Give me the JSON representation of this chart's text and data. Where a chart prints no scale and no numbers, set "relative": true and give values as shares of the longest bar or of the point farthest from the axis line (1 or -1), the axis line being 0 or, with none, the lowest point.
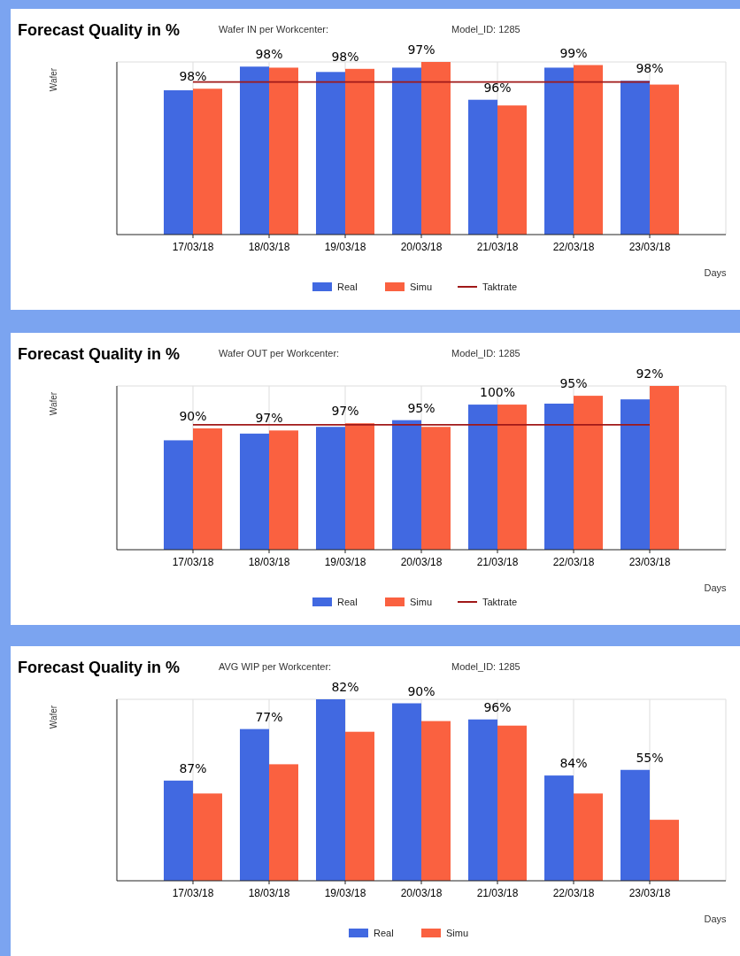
{
  "chart_data": [
    {
      "type": "bar",
      "title": "Forecast Quality in %",
      "subtitle": "Wafer IN per Workcenter:",
      "xlabel": "Days",
      "ylabel": "Wafer",
      "relative": true,
      "grid": true,
      "legend": "bottom",
      "categories": [
        "17/03/18",
        "18/03/18",
        "19/03/18",
        "20/03/18",
        "21/03/18",
        "22/03/18",
        "23/03/18"
      ],
      "series": [
        {
          "name": "Real",
          "color": "#4169e1",
          "values": [
            0.836,
            0.973,
            0.942,
            0.967,
            0.781,
            0.967,
            0.891
          ]
        },
        {
          "name": "Simu",
          "color": "#fa6140",
          "values": [
            0.845,
            0.967,
            0.96,
            1,
            0.748,
            0.982,
            0.869
          ]
        },
        {
          "name": "Taktrate",
          "type": "line",
          "color": "#a01818",
          "values": [
            0.884,
            0.884,
            0.884,
            0.884,
            0.884,
            0.884,
            0.884
          ]
        }
      ],
      "annotations": [
        "Model_ID: 1285",
        "98%",
        "98%",
        "98%",
        "97%",
        "96%",
        "99%",
        "98%"
      ]
    },
    {
      "type": "bar",
      "title": "Forecast Quality in %",
      "subtitle": "Wafer OUT per Workcenter:",
      "xlabel": "Days",
      "ylabel": "Wafer",
      "relative": true,
      "grid": true,
      "legend": "bottom",
      "categories": [
        "17/03/18",
        "18/03/18",
        "19/03/18",
        "20/03/18",
        "21/03/18",
        "22/03/18",
        "23/03/18"
      ],
      "series": [
        {
          "name": "Real",
          "color": "#4169e1",
          "values": [
            0.668,
            0.709,
            0.75,
            0.791,
            0.886,
            0.892,
            0.918
          ]
        },
        {
          "name": "Simu",
          "color": "#fa6140",
          "values": [
            0.741,
            0.728,
            0.772,
            0.75,
            0.886,
            0.94,
            1
          ]
        },
        {
          "name": "Taktrate",
          "type": "line",
          "color": "#a01818",
          "values": [
            0.763,
            0.763,
            0.763,
            0.763,
            0.763,
            0.763,
            0.763
          ]
        }
      ],
      "annotations": [
        "Model_ID: 1285",
        "90%",
        "97%",
        "97%",
        "95%",
        "100%",
        "95%",
        "92%"
      ]
    },
    {
      "type": "bar",
      "title": "Forecast Quality in %",
      "subtitle": "AVG WIP per Workcenter:",
      "xlabel": "Days",
      "ylabel": "Wafer",
      "relative": true,
      "grid": true,
      "legend": "bottom",
      "categories": [
        "17/03/18",
        "18/03/18",
        "19/03/18",
        "20/03/18",
        "21/03/18",
        "22/03/18",
        "23/03/18"
      ],
      "series": [
        {
          "name": "Real",
          "color": "#4169e1",
          "values": [
            0.552,
            0.836,
            1,
            0.978,
            0.889,
            0.58,
            0.611
          ]
        },
        {
          "name": "Simu",
          "color": "#fa6140",
          "values": [
            0.481,
            0.642,
            0.821,
            0.88,
            0.855,
            0.481,
            0.336
          ]
        }
      ],
      "annotations": [
        "Model_ID: 1285",
        "87%",
        "77%",
        "82%",
        "90%",
        "96%",
        "84%",
        "55%"
      ]
    }
  ]
}
